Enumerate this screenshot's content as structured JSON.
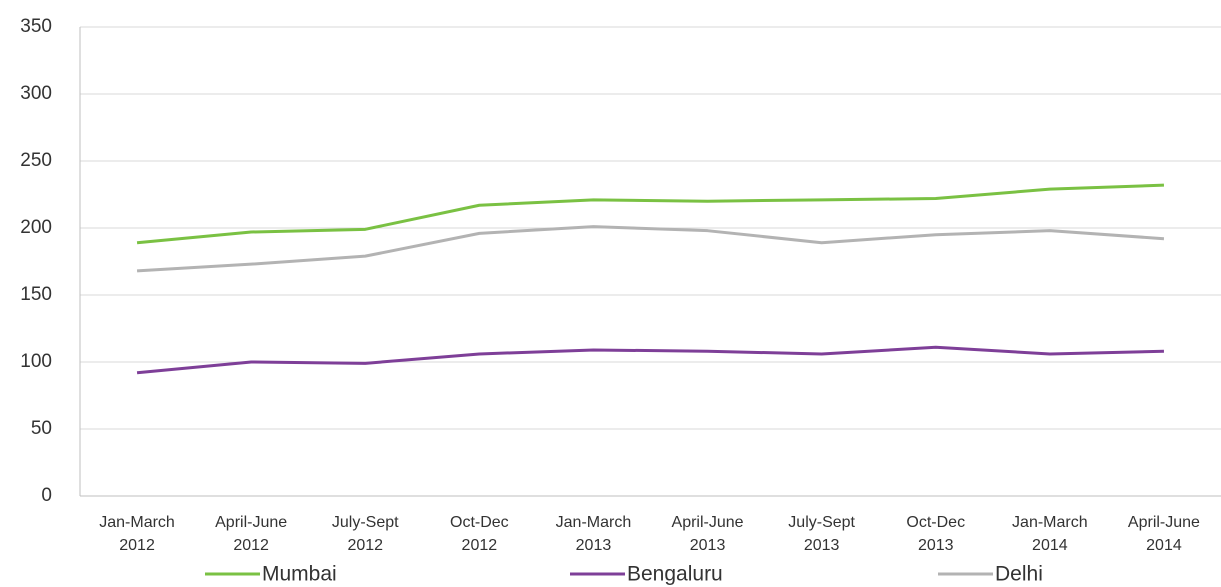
{
  "chart_data": {
    "type": "line",
    "categories": [
      [
        "Jan-March",
        "2012"
      ],
      [
        "April-June",
        "2012"
      ],
      [
        "July-Sept",
        "2012"
      ],
      [
        "Oct-Dec",
        "2012"
      ],
      [
        "Jan-March",
        "2013"
      ],
      [
        "April-June",
        "2013"
      ],
      [
        "July-Sept",
        "2013"
      ],
      [
        "Oct-Dec",
        "2013"
      ],
      [
        "Jan-March",
        "2014"
      ],
      [
        "April-June",
        "2014"
      ]
    ],
    "series": [
      {
        "name": "Mumbai",
        "color": "#7ac143",
        "values": [
          189,
          197,
          199,
          217,
          221,
          220,
          221,
          222,
          229,
          232
        ]
      },
      {
        "name": "Bengaluru",
        "color": "#7e3f98",
        "values": [
          92,
          100,
          99,
          106,
          109,
          108,
          106,
          111,
          106,
          108
        ]
      },
      {
        "name": "Delhi",
        "color": "#b3b3b3",
        "values": [
          168,
          173,
          179,
          196,
          201,
          198,
          189,
          195,
          198,
          192
        ]
      }
    ],
    "ylim": [
      0,
      350
    ],
    "yticks": [
      0,
      50,
      100,
      150,
      200,
      250,
      300,
      350
    ],
    "grid": true,
    "legend": "bottom"
  }
}
